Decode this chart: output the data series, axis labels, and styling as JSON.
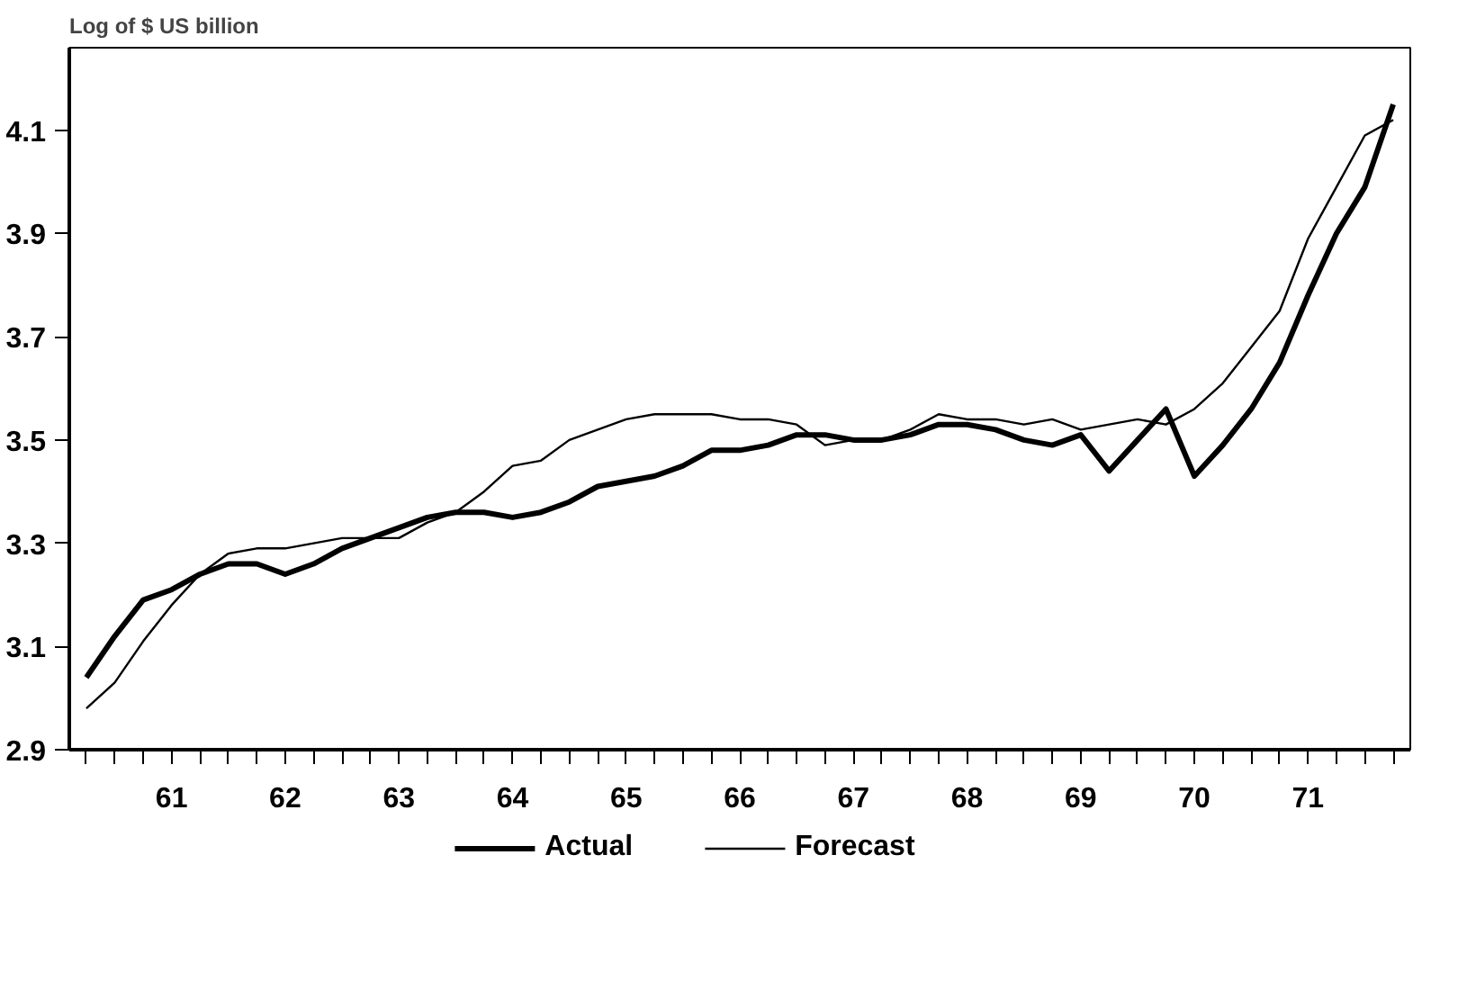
{
  "chart_data": {
    "type": "line",
    "ylabel": "Log of $ US billion",
    "x": [
      60.25,
      60.5,
      60.75,
      61,
      61.25,
      61.5,
      61.75,
      62,
      62.25,
      62.5,
      62.75,
      63,
      63.25,
      63.5,
      63.75,
      64,
      64.25,
      64.5,
      64.75,
      65,
      65.25,
      65.5,
      65.75,
      66,
      66.25,
      66.5,
      66.75,
      67,
      67.25,
      67.5,
      67.75,
      68,
      68.25,
      68.5,
      68.75,
      69,
      69.25,
      69.5,
      69.75,
      70,
      70.25,
      70.5,
      70.75,
      71,
      71.25,
      71.5,
      71.75
    ],
    "series": [
      {
        "name": "Actual",
        "color": "#000000",
        "values": [
          3.04,
          3.12,
          3.19,
          3.21,
          3.24,
          3.26,
          3.26,
          3.24,
          3.26,
          3.29,
          3.31,
          3.33,
          3.35,
          3.36,
          3.36,
          3.35,
          3.36,
          3.38,
          3.41,
          3.42,
          3.43,
          3.45,
          3.48,
          3.48,
          3.49,
          3.51,
          3.51,
          3.5,
          3.5,
          3.51,
          3.53,
          3.53,
          3.52,
          3.5,
          3.49,
          3.51,
          3.44,
          3.5,
          3.56,
          3.43,
          3.49,
          3.56,
          3.65,
          3.78,
          3.9,
          3.99,
          4.15
        ]
      },
      {
        "name": "Forecast",
        "color": "#000000",
        "values": [
          2.98,
          3.03,
          3.11,
          3.18,
          3.24,
          3.28,
          3.29,
          3.29,
          3.3,
          3.31,
          3.31,
          3.31,
          3.34,
          3.36,
          3.4,
          3.45,
          3.46,
          3.5,
          3.52,
          3.54,
          3.55,
          3.55,
          3.55,
          3.54,
          3.54,
          3.53,
          3.49,
          3.5,
          3.5,
          3.52,
          3.55,
          3.54,
          3.54,
          3.53,
          3.54,
          3.52,
          3.53,
          3.54,
          3.53,
          3.56,
          3.61,
          3.68,
          3.75,
          3.89,
          3.99,
          4.09,
          4.12
        ]
      }
    ],
    "xlim": [
      60.1,
      71.9
    ],
    "ylim": [
      2.9,
      4.26
    ],
    "xticks": [
      {
        "value": 60.25,
        "label": null
      },
      {
        "value": 60.5,
        "label": null
      },
      {
        "value": 60.75,
        "label": null
      },
      61,
      {
        "value": 61.25,
        "label": null
      },
      {
        "value": 61.5,
        "label": null
      },
      {
        "value": 61.75,
        "label": null
      },
      62,
      {
        "value": 62.25,
        "label": null
      },
      {
        "value": 62.5,
        "label": null
      },
      {
        "value": 62.75,
        "label": null
      },
      63,
      {
        "value": 63.25,
        "label": null
      },
      {
        "value": 63.5,
        "label": null
      },
      {
        "value": 63.75,
        "label": null
      },
      64,
      {
        "value": 64.25,
        "label": null
      },
      {
        "value": 64.5,
        "label": null
      },
      {
        "value": 64.75,
        "label": null
      },
      65,
      {
        "value": 65.25,
        "label": null
      },
      {
        "value": 65.5,
        "label": null
      },
      {
        "value": 65.75,
        "label": null
      },
      66,
      {
        "value": 66.25,
        "label": null
      },
      {
        "value": 66.5,
        "label": null
      },
      {
        "value": 66.75,
        "label": null
      },
      67,
      {
        "value": 67.25,
        "label": null
      },
      {
        "value": 67.5,
        "label": null
      },
      {
        "value": 67.75,
        "label": null
      },
      68,
      {
        "value": 68.25,
        "label": null
      },
      {
        "value": 68.5,
        "label": null
      },
      {
        "value": 68.75,
        "label": null
      },
      69,
      {
        "value": 69.25,
        "label": null
      },
      {
        "value": 69.5,
        "label": null
      },
      {
        "value": 69.75,
        "label": null
      },
      70,
      {
        "value": 70.25,
        "label": null
      },
      {
        "value": 70.5,
        "label": null
      },
      {
        "value": 70.75,
        "label": null
      },
      71,
      {
        "value": 71.25,
        "label": null
      },
      {
        "value": 71.5,
        "label": null
      },
      {
        "value": 71.75,
        "label": null
      }
    ],
    "yticks": [
      2.9,
      3.1,
      3.3,
      3.5,
      3.7,
      3.9,
      4.1
    ],
    "grid": false,
    "legend": "bottom",
    "line_style": "solid"
  }
}
